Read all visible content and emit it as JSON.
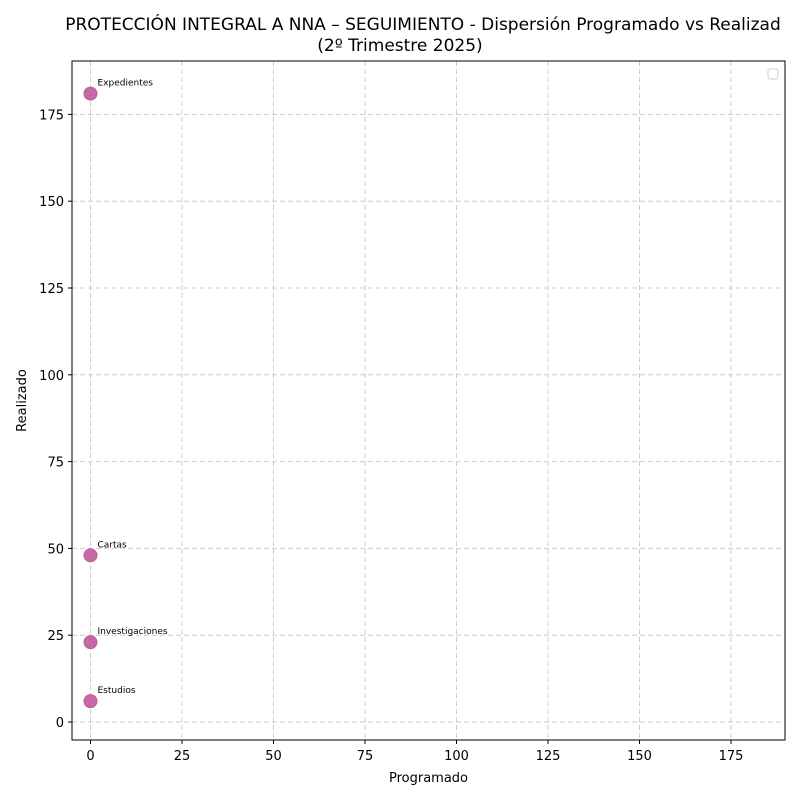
{
  "chart_data": {
    "type": "scatter",
    "title": "PROTECCIÓN INTEGRAL A NNA – SEGUIMIENTO - Dispersión Programado vs Realizado",
    "title_line1": "PROTECCIÓN INTEGRAL A NNA – SEGUIMIENTO - Dispersión Programado vs Realizad",
    "subtitle": "(2º Trimestre 2025)",
    "xlabel": "Programado",
    "ylabel": "Realizado",
    "xlim": [
      -5,
      190
    ],
    "ylim": [
      -5,
      190
    ],
    "xticks": [
      0,
      25,
      50,
      75,
      100,
      125,
      150,
      175
    ],
    "yticks": [
      0,
      25,
      50,
      75,
      100,
      125,
      150,
      175
    ],
    "grid": true,
    "legend": {
      "position": "upper right",
      "entries": []
    },
    "marker_color": "#c05a9c",
    "points": [
      {
        "label": "Expedientes",
        "x": 0,
        "y": 181
      },
      {
        "label": "Cartas",
        "x": 0,
        "y": 48
      },
      {
        "label": "Investigaciones",
        "x": 0,
        "y": 23
      },
      {
        "label": "Estudios",
        "x": 0,
        "y": 6
      }
    ]
  }
}
